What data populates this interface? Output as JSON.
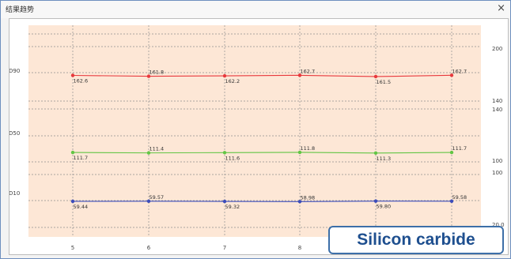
{
  "window": {
    "title": "结果趋势",
    "close_glyph": "×",
    "overlay_label": "Silicon carbide"
  },
  "chart_data": {
    "type": "line",
    "x": [
      5,
      6,
      7,
      8,
      9,
      10
    ],
    "x_tick_labels": [
      "5",
      "6",
      "7",
      "8",
      "",
      ""
    ],
    "grid": true,
    "background": "#fde7d6",
    "panels": [
      {
        "name": "D90",
        "color": "#e8393d",
        "values": [
          162.6,
          161.8,
          162.2,
          162.7,
          161.5,
          162.7
        ],
        "labels": [
          "162.6",
          "161.8",
          "162.2",
          "162.7",
          "161.5",
          "162.7"
        ],
        "ylim": [
          140,
          200
        ],
        "right_ticks": [
          "200",
          "140"
        ]
      },
      {
        "name": "D50",
        "color": "#62c544",
        "values": [
          111.7,
          111.4,
          111.6,
          111.8,
          111.3,
          111.7
        ],
        "labels": [
          "111.7",
          "111.4",
          "111.6",
          "111.8",
          "111.3",
          "111.7"
        ],
        "ylim": [
          100,
          140
        ],
        "right_ticks": [
          "140",
          "100"
        ]
      },
      {
        "name": "D10",
        "color": "#3c4dbb",
        "values": [
          59.44,
          59.57,
          59.32,
          58.98,
          59.8,
          59.58
        ],
        "labels": [
          "59.44",
          "59.57",
          "59.32",
          "58.98",
          "59.80",
          "59.58"
        ],
        "ylim": [
          20,
          100
        ],
        "right_ticks": [
          "100",
          "20.0"
        ]
      }
    ]
  }
}
